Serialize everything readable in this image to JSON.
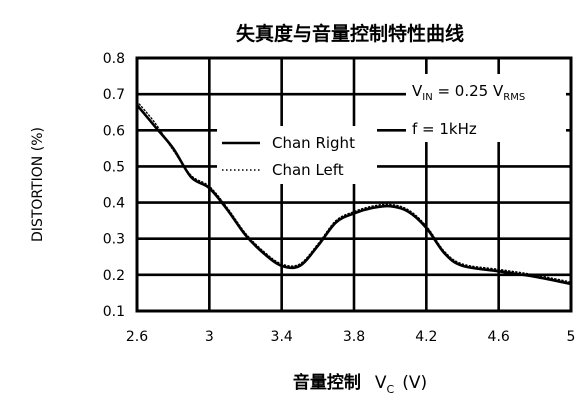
{
  "chart_data": {
    "type": "line",
    "title": "失真度与音量控制特性曲线",
    "xlabel": "音量控制",
    "xlabel_var": "V",
    "xlabel_sub": "C",
    "xlabel_unit": "(V)",
    "ylabel": "DISTORTION (%)",
    "xlim": [
      2.6,
      5.0
    ],
    "ylim": [
      0.1,
      0.8
    ],
    "x_ticks": [
      "2.6",
      "3",
      "3.4",
      "3.8",
      "4.2",
      "4.6",
      "5"
    ],
    "y_ticks": [
      "0.1",
      "0.2",
      "0.3",
      "0.4",
      "0.5",
      "0.6",
      "0.7",
      "0.8"
    ],
    "grid": true,
    "conditions": {
      "vin_prefix": "V",
      "vin_sub": "IN",
      "vin_mid": " = 0.25 V",
      "vin_unit_sub": "RMS",
      "freq": "f = 1kHz"
    },
    "legend": [
      {
        "name": "Chan Right",
        "style": "solid"
      },
      {
        "name": "Chan Left",
        "style": "dotted"
      }
    ],
    "series": [
      {
        "name": "Chan Right",
        "style": "solid",
        "x": [
          2.6,
          2.7,
          2.8,
          2.9,
          3.0,
          3.1,
          3.2,
          3.3,
          3.4,
          3.5,
          3.6,
          3.7,
          3.8,
          3.9,
          4.0,
          4.1,
          4.2,
          4.3,
          4.4,
          4.6,
          4.8,
          5.0
        ],
        "y": [
          0.67,
          0.61,
          0.55,
          0.47,
          0.44,
          0.38,
          0.31,
          0.26,
          0.225,
          0.225,
          0.28,
          0.345,
          0.37,
          0.385,
          0.39,
          0.375,
          0.33,
          0.26,
          0.225,
          0.21,
          0.195,
          0.175
        ]
      },
      {
        "name": "Chan Left",
        "style": "dotted",
        "x": [
          2.6,
          2.7,
          2.8,
          2.9,
          3.0,
          3.1,
          3.2,
          3.3,
          3.4,
          3.5,
          3.6,
          3.7,
          3.8,
          3.9,
          4.0,
          4.1,
          4.2,
          4.3,
          4.4,
          4.6,
          4.8,
          5.0
        ],
        "y": [
          0.68,
          0.62,
          0.545,
          0.475,
          0.445,
          0.385,
          0.315,
          0.265,
          0.23,
          0.23,
          0.285,
          0.35,
          0.375,
          0.39,
          0.395,
          0.38,
          0.335,
          0.265,
          0.23,
          0.215,
          0.2,
          0.18
        ]
      }
    ]
  }
}
